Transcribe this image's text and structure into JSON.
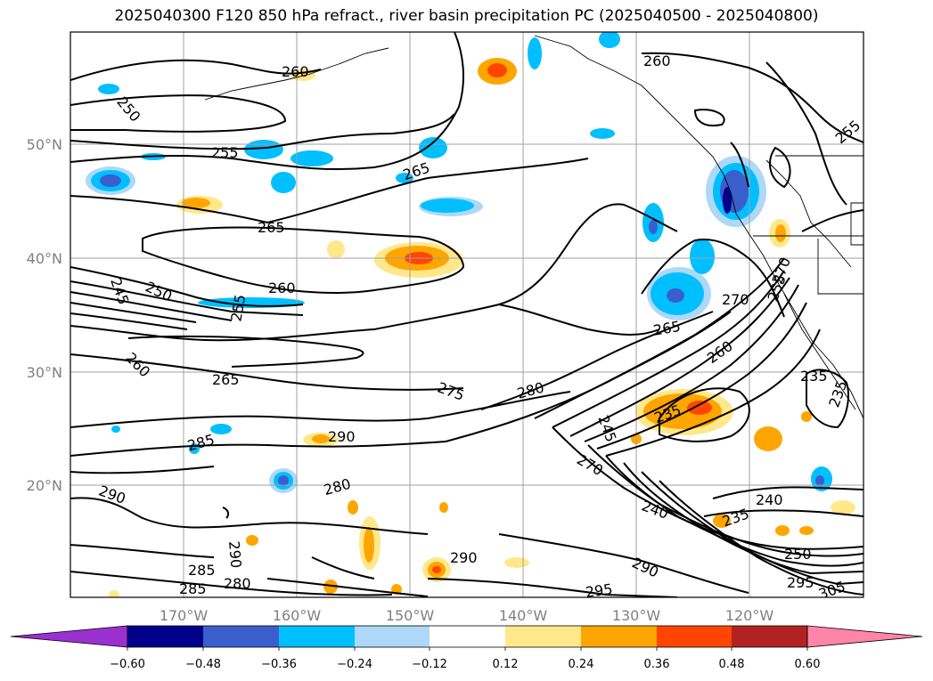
{
  "title": "2025040300 F120 850 hPa refract., river basin precipitation PC (2025040500 - 2025040800)",
  "lat_labels": [
    "50°N",
    "40°N",
    "30°N",
    "20°N"
  ],
  "lon_labels": [
    "170°W",
    "160°W",
    "150°W",
    "140°W",
    "130°W",
    "120°W"
  ],
  "colorbar": {
    "ticks": [
      "−0.60",
      "−0.48",
      "−0.36",
      "−0.24",
      "−0.12",
      "0.12",
      "0.24",
      "0.36",
      "0.48",
      "0.60"
    ],
    "colors": [
      "#9b30d0",
      "#00008b",
      "#3a5fcd",
      "#00bfff",
      "#add8f8",
      "#ffffff",
      "#ffe88a",
      "#ffa500",
      "#ff4500",
      "#b22222",
      "#ff85a8"
    ]
  },
  "contour_labels": [
    "260",
    "260",
    "250",
    "255",
    "255",
    "265",
    "265",
    "260",
    "250",
    "245",
    "255",
    "260",
    "265",
    "275",
    "280",
    "285",
    "290",
    "290",
    "280",
    "290",
    "285",
    "285",
    "280",
    "290",
    "295",
    "270",
    "265",
    "260",
    "235",
    "245",
    "270",
    "235",
    "240",
    "235",
    "250",
    "290",
    "295",
    "305",
    "235",
    "240",
    "255",
    "270"
  ]
}
